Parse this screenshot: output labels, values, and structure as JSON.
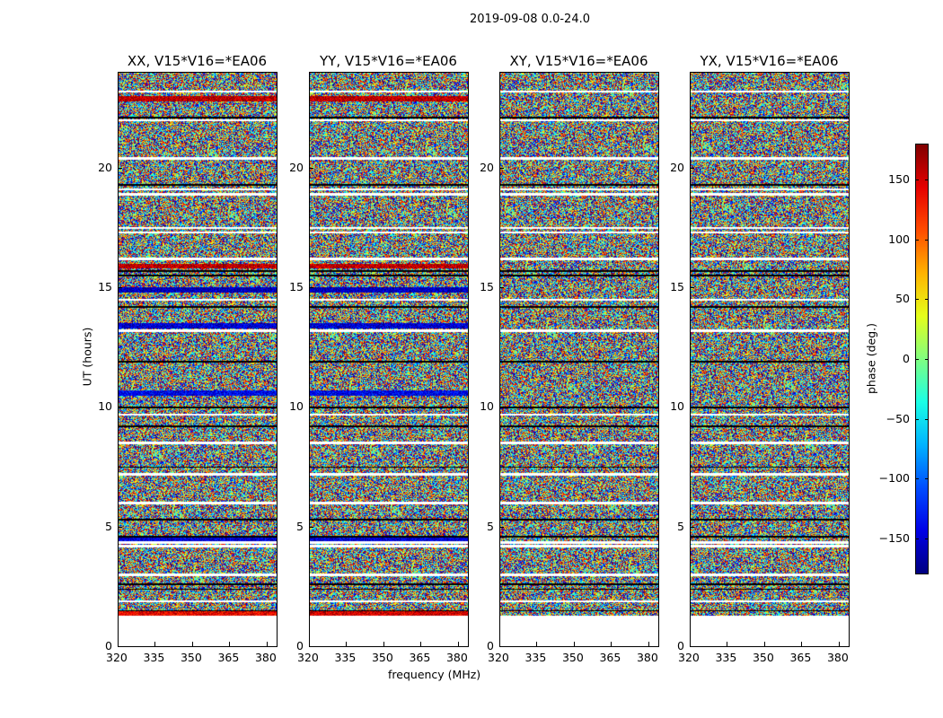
{
  "chart_data": {
    "type": "heatmap",
    "title": "2019-09-08 0.0-24.0",
    "xlabel": "frequency (MHz)",
    "ylabel": "UT (hours)",
    "xlim": [
      320,
      384
    ],
    "ylim": [
      0,
      24
    ],
    "xticks": [
      320,
      335,
      350,
      365,
      380
    ],
    "yticks": [
      0,
      5,
      10,
      15,
      20
    ],
    "data_time_range_hours": [
      1.3,
      24
    ],
    "flagged_gap_hours": [
      1.9,
      3.0,
      4.2,
      4.35,
      6.0,
      7.2,
      8.5,
      9.7,
      13.2,
      14.5,
      16.2,
      17.3,
      17.5,
      18.9,
      19.1,
      20.4,
      22.0,
      23.2
    ],
    "dark_line_hours": [
      1.5,
      2.4,
      2.6,
      4.6,
      5.3,
      7.5,
      9.2,
      10.0,
      11.9,
      14.2,
      15.5,
      15.7,
      19.3,
      22.1
    ],
    "value_distribution": "phase noise, roughly uniform over -180 to 180 deg",
    "panels": [
      {
        "title": "XX, V15*V16=*EA06",
        "biased_bands": [
          {
            "hour": 1.4,
            "phase": 140
          },
          {
            "hour": 4.5,
            "phase": -150
          },
          {
            "hour": 10.6,
            "phase": -140
          },
          {
            "hour": 13.4,
            "phase": -150
          },
          {
            "hour": 14.9,
            "phase": -160
          },
          {
            "hour": 15.9,
            "phase": 160
          },
          {
            "hour": 22.9,
            "phase": 160
          }
        ]
      },
      {
        "title": "YY, V15*V16=*EA06",
        "biased_bands": [
          {
            "hour": 1.4,
            "phase": 150
          },
          {
            "hour": 4.5,
            "phase": -150
          },
          {
            "hour": 10.6,
            "phase": -140
          },
          {
            "hour": 13.4,
            "phase": -150
          },
          {
            "hour": 14.9,
            "phase": -160
          },
          {
            "hour": 15.9,
            "phase": 160
          },
          {
            "hour": 22.9,
            "phase": 160
          }
        ]
      },
      {
        "title": "XY, V15*V16=*EA06",
        "biased_bands": []
      },
      {
        "title": "YX, V15*V16=*EA06",
        "biased_bands": []
      }
    ],
    "colorbar": {
      "label": "phase (deg.)",
      "range": [
        -180,
        180
      ],
      "ticks": [
        "150",
        "100",
        "50",
        "0",
        "−50",
        "−100",
        "−150"
      ],
      "tick_values": [
        150,
        100,
        50,
        0,
        -50,
        -100,
        -150
      ],
      "colormap": "jet"
    }
  }
}
